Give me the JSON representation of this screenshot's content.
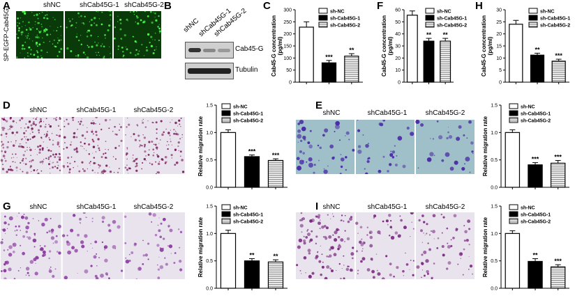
{
  "panels": {
    "A": {
      "label": "A",
      "side_label": "SP-EGFP-Cab45G",
      "columns": [
        "shNC",
        "shCab45G-1",
        "shCab45G-2"
      ]
    },
    "B": {
      "label": "B",
      "columns": [
        "shNC",
        "shCab45G-1",
        "shCab45G-2"
      ],
      "rows": [
        "Cab45-G",
        "Tubulin"
      ]
    },
    "D": {
      "label": "D",
      "columns": [
        "shNC",
        "shCab45G-1",
        "shCab45G-2"
      ]
    },
    "E": {
      "label": "E",
      "columns": [
        "shNC",
        "shCab45G-1",
        "shCab45G-2"
      ]
    },
    "G": {
      "label": "G",
      "columns": [
        "shNC",
        "shCab45G-1",
        "shCab45G-2"
      ]
    },
    "I": {
      "label": "I",
      "columns": [
        "shNC",
        "shCab45G-1",
        "shCab45G-2"
      ]
    },
    "C": {
      "label": "C"
    },
    "F": {
      "label": "F"
    },
    "H": {
      "label": "H"
    }
  },
  "colors": {
    "micro_green": "#0a3a0a",
    "micro_purple": "#e9e3ee",
    "micro_blue": "#9fc0c8"
  },
  "chart_data": [
    {
      "id": "C",
      "type": "bar",
      "categories": [
        "sh-NC",
        "sh-Cab45G-1",
        "sh-Cab45G-2"
      ],
      "values": [
        228,
        80,
        108
      ],
      "errors": [
        22,
        10,
        10
      ],
      "sig": [
        "",
        "***",
        "**"
      ],
      "ylabel": "Cab45-G concentration (pg/ml)",
      "ylim": [
        0,
        300
      ],
      "yticks": [
        0,
        50,
        100,
        150,
        200,
        250,
        300
      ],
      "legend": [
        "sh-NC",
        "sh-Cab45G-1",
        "sh-Cab45G-2"
      ]
    },
    {
      "id": "F",
      "type": "bar",
      "categories": [
        "sh-NC",
        "sh-Cab45G-1",
        "sh-Cab45G-2"
      ],
      "values": [
        55.5,
        34,
        34
      ],
      "errors": [
        3.5,
        2.3,
        2.3
      ],
      "sig": [
        "",
        "**",
        "**"
      ],
      "ylabel": "Cab45-G concentration (pg/ml)",
      "ylim": [
        0,
        60
      ],
      "yticks": [
        0,
        10,
        20,
        30,
        40,
        50,
        60
      ],
      "legend": [
        "sh-NC",
        "sh-Cab45G-1",
        "sh-Cab45G-2"
      ]
    },
    {
      "id": "H",
      "type": "bar",
      "categories": [
        "sh-NC",
        "sh-Cab45G-1",
        "sh-Cab45G-2"
      ],
      "values": [
        24,
        11.2,
        8.7
      ],
      "errors": [
        1.6,
        0.8,
        0.8
      ],
      "sig": [
        "",
        "**",
        "***"
      ],
      "ylabel": "Cab45-G concentration (pg/ml)",
      "ylim": [
        0,
        30
      ],
      "yticks": [
        0,
        5,
        10,
        15,
        20,
        25,
        30
      ],
      "legend": [
        "sh-NC",
        "sh-Cab45G-1",
        "sh-Cab45G-2"
      ]
    },
    {
      "id": "D",
      "type": "bar",
      "categories": [
        "sh-NC",
        "sh-Cab45-1",
        "sh-Cab45-2"
      ],
      "values": [
        1.0,
        0.56,
        0.49
      ],
      "errors": [
        0.05,
        0.03,
        0.03
      ],
      "sig": [
        "",
        "***",
        "***"
      ],
      "ylabel": "Relative migration rate",
      "ylim": [
        0,
        1.5
      ],
      "yticks": [
        "0.0",
        "0.5",
        "1.0",
        "1.5"
      ],
      "legend": [
        "sh-NC",
        "sh-Cab45G-1",
        "sh-Cab45G-2"
      ]
    },
    {
      "id": "E",
      "type": "bar",
      "categories": [
        "sh-NC",
        "sh-Cab45G-1",
        "sh-Cab45G-2"
      ],
      "values": [
        1.0,
        0.41,
        0.44
      ],
      "errors": [
        0.05,
        0.04,
        0.05
      ],
      "sig": [
        "",
        "***",
        "***"
      ],
      "ylabel": "Relative migration rate",
      "ylim": [
        0,
        1.5
      ],
      "yticks": [
        "0.0",
        "0.5",
        "1.0",
        "1.5"
      ],
      "legend": [
        "sh-NC",
        "sh-Cab45G-1",
        "sh-Cab45G-2"
      ]
    },
    {
      "id": "G",
      "type": "bar",
      "categories": [
        "sh-NC",
        "sh-Cab45G-1",
        "sh-Cab45G-2"
      ],
      "values": [
        1.0,
        0.5,
        0.48
      ],
      "errors": [
        0.06,
        0.04,
        0.04
      ],
      "sig": [
        "",
        "**",
        "**"
      ],
      "ylabel": "Relative migration rate",
      "ylim": [
        0,
        1.5
      ],
      "yticks": [
        "0.0",
        "0.5",
        "1.0",
        "1.5"
      ],
      "legend": [
        "sh-NC",
        "sh-Cab45G-1",
        "sh-Cab45G-2"
      ]
    },
    {
      "id": "I",
      "type": "bar",
      "categories": [
        "sh-NC",
        "sh-Cab45G-1",
        "sh-Cab45G-2"
      ],
      "values": [
        1.0,
        0.49,
        0.39
      ],
      "errors": [
        0.05,
        0.05,
        0.04
      ],
      "sig": [
        "",
        "**",
        "***"
      ],
      "ylabel": "Relative migration rate",
      "ylim": [
        0,
        1.5
      ],
      "yticks": [
        "0.0",
        "0.5",
        "1.0",
        "1.5"
      ],
      "legend": [
        "sh-NC",
        "sh-Cab45G-1",
        "sh-Cab45G-2"
      ]
    }
  ]
}
